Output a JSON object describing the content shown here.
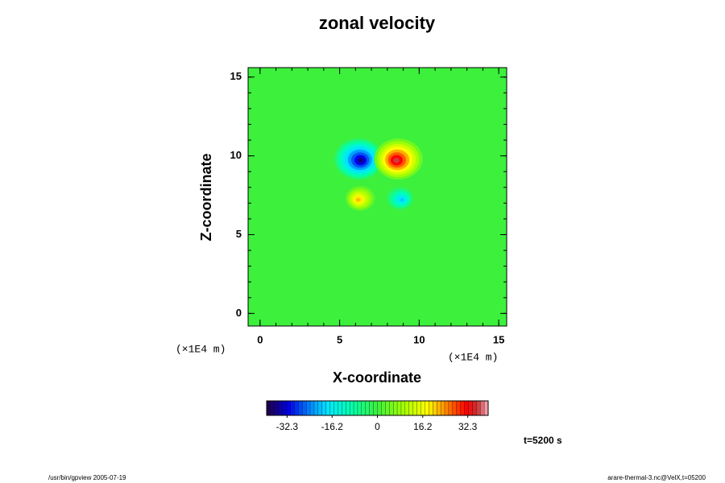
{
  "chart_data": {
    "type": "contour",
    "title": "zonal velocity",
    "xlabel": "X-coordinate",
    "ylabel": "Z-coordinate",
    "xunit": "(×1E4 m)",
    "yunit": "(×1E4 m)",
    "xlim": [
      -0.75,
      15.5
    ],
    "ylim": [
      -0.8,
      15.6
    ],
    "xticks": [
      0,
      5,
      10,
      15
    ],
    "yticks": [
      0,
      5,
      10,
      15
    ],
    "xminorticks": [
      0,
      1,
      2,
      3,
      4,
      5,
      6,
      7,
      8,
      9,
      10,
      11,
      12,
      13,
      14,
      15
    ],
    "yminorticks": [
      0,
      1,
      2,
      3,
      4,
      5,
      6,
      7,
      8,
      9,
      10,
      11,
      12,
      13,
      14,
      15
    ],
    "features": [
      {
        "x": 6.2,
        "z": 9.8,
        "value": -36
      },
      {
        "x": 8.7,
        "z": 9.8,
        "value": 36
      },
      {
        "x": 6.3,
        "z": 7.3,
        "value": 22
      },
      {
        "x": 8.8,
        "z": 7.3,
        "value": -20
      }
    ],
    "colorbar": {
      "lim": [
        -39.6,
        39.6
      ],
      "ticks": [
        -32.3,
        -16.2,
        0,
        16.2,
        32.3
      ]
    },
    "annotation": "t=5200 s",
    "footer_left": "/usr/bin/gpview 2005-07-19",
    "footer_right": "arare-thermal-3.nc@VelX,t=05200"
  }
}
